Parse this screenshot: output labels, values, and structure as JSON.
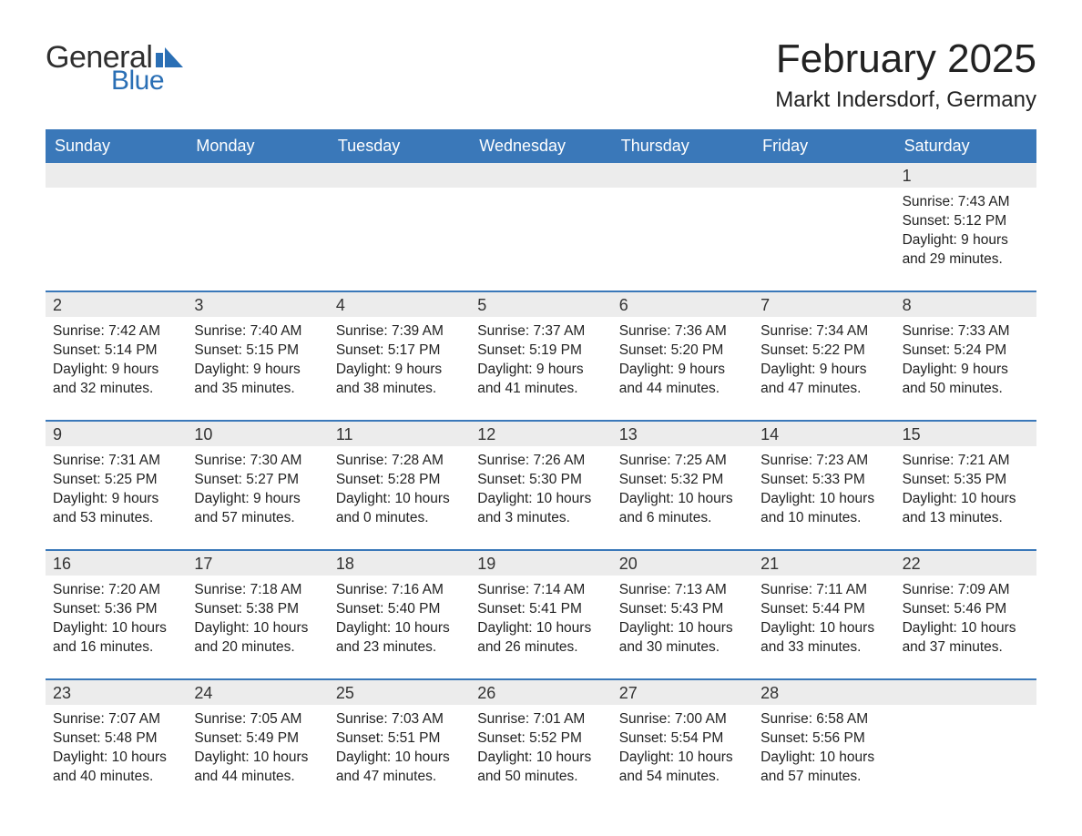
{
  "brand": {
    "word1": "General",
    "word2": "Blue",
    "mark_color": "#2a6fb5",
    "text1_color": "#2f2f2f"
  },
  "title": "February 2025",
  "location": "Markt Indersdorf, Germany",
  "colors": {
    "header_bg": "#3a78b9",
    "header_text": "#ffffff",
    "daynum_bg": "#ececec",
    "week_border": "#3a78b9",
    "body_text": "#222222",
    "page_bg": "#ffffff"
  },
  "layout": {
    "columns": 7,
    "start_day_index": 6
  },
  "dow": [
    "Sunday",
    "Monday",
    "Tuesday",
    "Wednesday",
    "Thursday",
    "Friday",
    "Saturday"
  ],
  "days": [
    {
      "n": 1,
      "sunrise": "7:43 AM",
      "sunset": "5:12 PM",
      "daylight": "9 hours and 29 minutes."
    },
    {
      "n": 2,
      "sunrise": "7:42 AM",
      "sunset": "5:14 PM",
      "daylight": "9 hours and 32 minutes."
    },
    {
      "n": 3,
      "sunrise": "7:40 AM",
      "sunset": "5:15 PM",
      "daylight": "9 hours and 35 minutes."
    },
    {
      "n": 4,
      "sunrise": "7:39 AM",
      "sunset": "5:17 PM",
      "daylight": "9 hours and 38 minutes."
    },
    {
      "n": 5,
      "sunrise": "7:37 AM",
      "sunset": "5:19 PM",
      "daylight": "9 hours and 41 minutes."
    },
    {
      "n": 6,
      "sunrise": "7:36 AM",
      "sunset": "5:20 PM",
      "daylight": "9 hours and 44 minutes."
    },
    {
      "n": 7,
      "sunrise": "7:34 AM",
      "sunset": "5:22 PM",
      "daylight": "9 hours and 47 minutes."
    },
    {
      "n": 8,
      "sunrise": "7:33 AM",
      "sunset": "5:24 PM",
      "daylight": "9 hours and 50 minutes."
    },
    {
      "n": 9,
      "sunrise": "7:31 AM",
      "sunset": "5:25 PM",
      "daylight": "9 hours and 53 minutes."
    },
    {
      "n": 10,
      "sunrise": "7:30 AM",
      "sunset": "5:27 PM",
      "daylight": "9 hours and 57 minutes."
    },
    {
      "n": 11,
      "sunrise": "7:28 AM",
      "sunset": "5:28 PM",
      "daylight": "10 hours and 0 minutes."
    },
    {
      "n": 12,
      "sunrise": "7:26 AM",
      "sunset": "5:30 PM",
      "daylight": "10 hours and 3 minutes."
    },
    {
      "n": 13,
      "sunrise": "7:25 AM",
      "sunset": "5:32 PM",
      "daylight": "10 hours and 6 minutes."
    },
    {
      "n": 14,
      "sunrise": "7:23 AM",
      "sunset": "5:33 PM",
      "daylight": "10 hours and 10 minutes."
    },
    {
      "n": 15,
      "sunrise": "7:21 AM",
      "sunset": "5:35 PM",
      "daylight": "10 hours and 13 minutes."
    },
    {
      "n": 16,
      "sunrise": "7:20 AM",
      "sunset": "5:36 PM",
      "daylight": "10 hours and 16 minutes."
    },
    {
      "n": 17,
      "sunrise": "7:18 AM",
      "sunset": "5:38 PM",
      "daylight": "10 hours and 20 minutes."
    },
    {
      "n": 18,
      "sunrise": "7:16 AM",
      "sunset": "5:40 PM",
      "daylight": "10 hours and 23 minutes."
    },
    {
      "n": 19,
      "sunrise": "7:14 AM",
      "sunset": "5:41 PM",
      "daylight": "10 hours and 26 minutes."
    },
    {
      "n": 20,
      "sunrise": "7:13 AM",
      "sunset": "5:43 PM",
      "daylight": "10 hours and 30 minutes."
    },
    {
      "n": 21,
      "sunrise": "7:11 AM",
      "sunset": "5:44 PM",
      "daylight": "10 hours and 33 minutes."
    },
    {
      "n": 22,
      "sunrise": "7:09 AM",
      "sunset": "5:46 PM",
      "daylight": "10 hours and 37 minutes."
    },
    {
      "n": 23,
      "sunrise": "7:07 AM",
      "sunset": "5:48 PM",
      "daylight": "10 hours and 40 minutes."
    },
    {
      "n": 24,
      "sunrise": "7:05 AM",
      "sunset": "5:49 PM",
      "daylight": "10 hours and 44 minutes."
    },
    {
      "n": 25,
      "sunrise": "7:03 AM",
      "sunset": "5:51 PM",
      "daylight": "10 hours and 47 minutes."
    },
    {
      "n": 26,
      "sunrise": "7:01 AM",
      "sunset": "5:52 PM",
      "daylight": "10 hours and 50 minutes."
    },
    {
      "n": 27,
      "sunrise": "7:00 AM",
      "sunset": "5:54 PM",
      "daylight": "10 hours and 54 minutes."
    },
    {
      "n": 28,
      "sunrise": "6:58 AM",
      "sunset": "5:56 PM",
      "daylight": "10 hours and 57 minutes."
    }
  ],
  "labels": {
    "sunrise": "Sunrise:",
    "sunset": "Sunset:",
    "daylight": "Daylight:"
  }
}
